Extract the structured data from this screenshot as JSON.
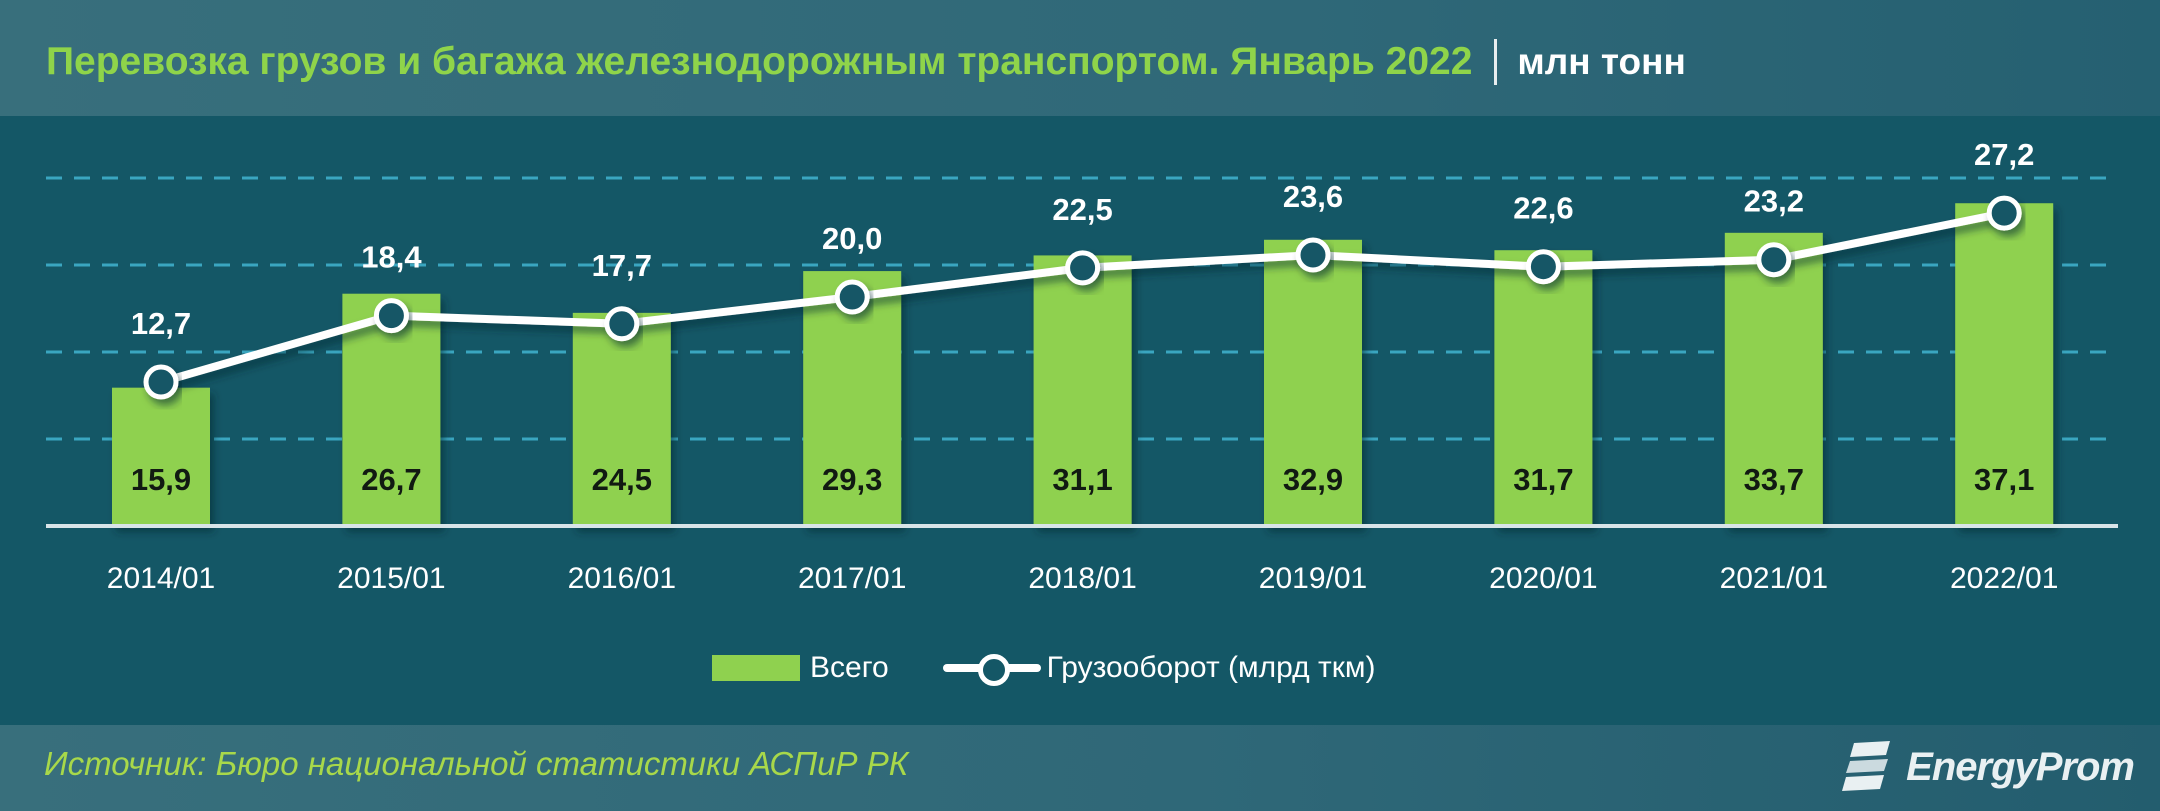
{
  "header": {
    "title": "Перевозка грузов и багажа железнодорожным транспортом. Январь 2022",
    "unit": "млн тонн"
  },
  "legend": {
    "bars_label": "Всего",
    "line_label": "Грузооборот (млрд ткм)"
  },
  "footer": {
    "source": "Источник: Бюро национальной статистики АСПиР РК",
    "logo_text": "EnergyProm"
  },
  "colors": {
    "bar": "#8fd14f",
    "line": "#ffffff",
    "background": "#145766",
    "header": "#386f7c",
    "title": "#8fd44a",
    "gridline": "#3aa6c0",
    "source_text": "#a8d84a"
  },
  "chart_data": {
    "type": "bar",
    "title": "Перевозка грузов и багажа железнодорожным транспортом. Январь 2022",
    "subtitle": "млн тонн",
    "xlabel": "",
    "ylabel": "",
    "categories": [
      "2014/01",
      "2015/01",
      "2016/01",
      "2017/01",
      "2018/01",
      "2019/01",
      "2020/01",
      "2021/01",
      "2022/01"
    ],
    "series": [
      {
        "name": "Всего",
        "type": "bar",
        "unit": "млн тонн",
        "values": [
          15.9,
          26.7,
          24.5,
          29.3,
          31.1,
          32.9,
          31.7,
          33.7,
          37.1
        ],
        "labels": [
          "15,9",
          "26,7",
          "24,5",
          "29,3",
          "31,1",
          "32,9",
          "31,7",
          "33,7",
          "37,1"
        ]
      },
      {
        "name": "Грузооборот (млрд ткм)",
        "type": "line",
        "unit": "млрд ткм",
        "values": [
          12.7,
          18.4,
          17.7,
          20.0,
          22.5,
          23.6,
          22.6,
          23.2,
          27.2
        ],
        "labels": [
          "12,7",
          "18,4",
          "17,7",
          "20,0",
          "22,5",
          "23,6",
          "22,6",
          "23,2",
          "27,2"
        ]
      }
    ],
    "ylim": [
      0,
      40
    ],
    "grid": true,
    "grid_style": "dashed horizontal",
    "legend_position": "bottom"
  }
}
